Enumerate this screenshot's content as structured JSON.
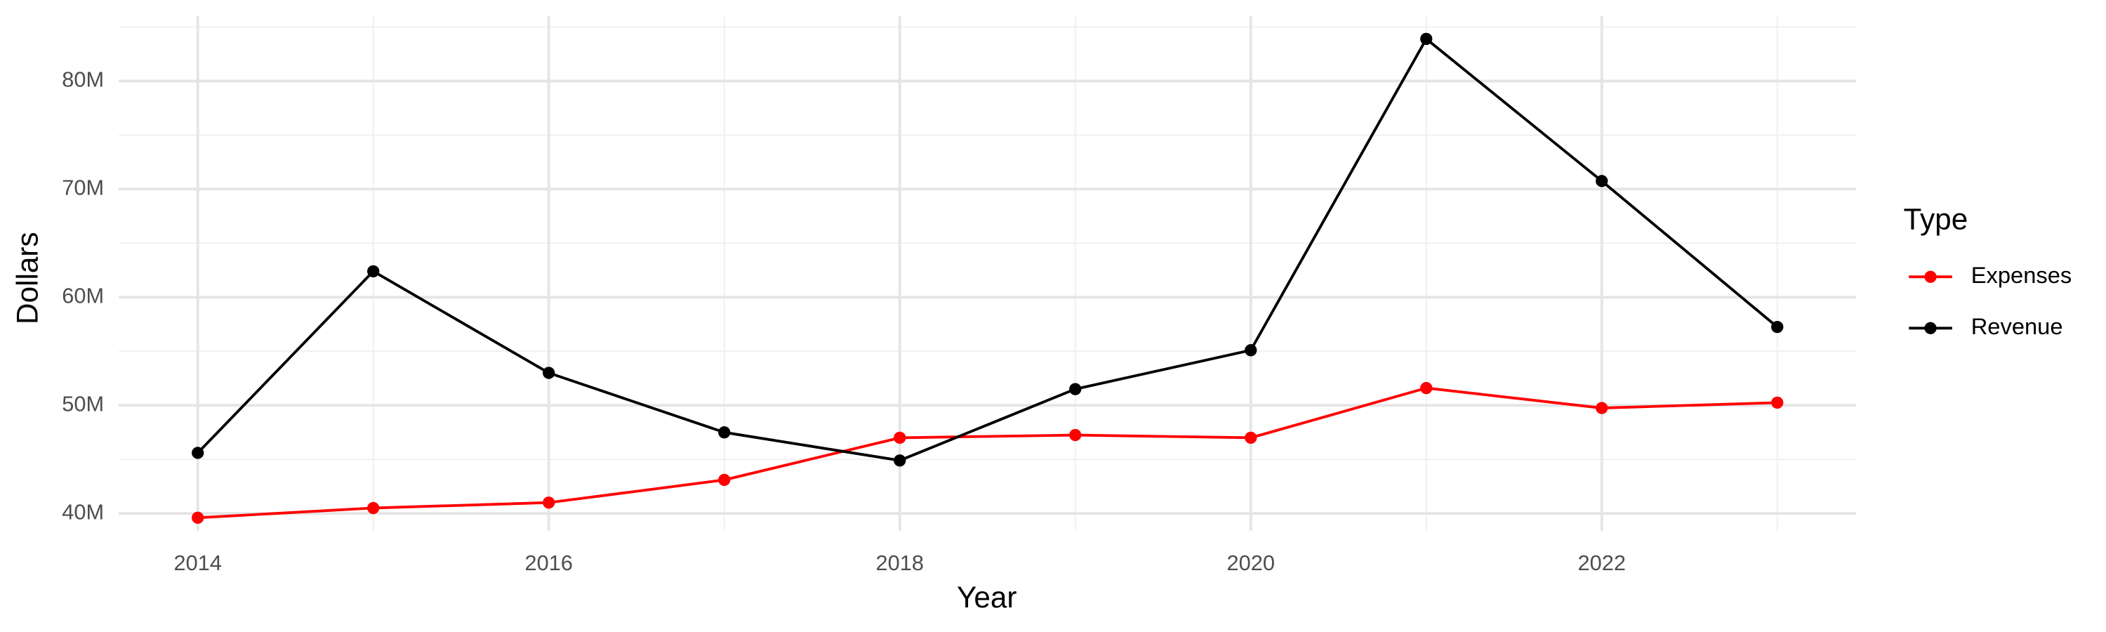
{
  "chart_data": {
    "type": "line",
    "x_label": "Year",
    "y_label": "Dollars",
    "legend_title": "Type",
    "legend_position": "right",
    "grid": true,
    "x": [
      2014,
      2015,
      2016,
      2017,
      2018,
      2019,
      2020,
      2021,
      2022,
      2023
    ],
    "series": [
      {
        "name": "Expenses",
        "color": "#ff0000",
        "values": [
          39600000,
          40500000,
          41000000,
          43100000,
          47000000,
          47250000,
          47000000,
          51600000,
          49750000,
          50250000
        ]
      },
      {
        "name": "Revenue",
        "color": "#000000",
        "values": [
          45600000,
          62400000,
          53000000,
          47500000,
          44900000,
          51500000,
          55100000,
          83900000,
          70750000,
          57250000
        ]
      }
    ],
    "xlim": [
      2013.55,
      2023.45
    ],
    "xticks": [
      2014,
      2016,
      2018,
      2020,
      2022
    ],
    "ylim": [
      38400000,
      86000000
    ],
    "yticks": [
      {
        "value": 40000000,
        "label": "40M"
      },
      {
        "value": 50000000,
        "label": "50M"
      },
      {
        "value": 60000000,
        "label": "60M"
      },
      {
        "value": 70000000,
        "label": "70M"
      },
      {
        "value": 80000000,
        "label": "80M"
      }
    ]
  }
}
